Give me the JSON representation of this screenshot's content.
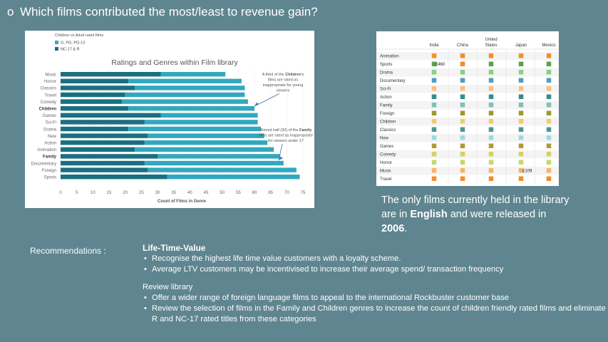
{
  "slide": {
    "bullet": "o",
    "title": "Which films contributed the most/least to revenue gain?"
  },
  "colors": {
    "background": "#5f8590",
    "teal_dark": "#1a6f80",
    "teal_light": "#32a8be"
  },
  "chart_data": [
    {
      "type": "bar",
      "orientation": "horizontal",
      "stacked": true,
      "title": "Ratings and Genres within Film library",
      "legend_title": "Children vs Adult rated films",
      "legend_position": "top-left",
      "xlabel": "Count of Films in Genre",
      "xlim": [
        0,
        75
      ],
      "xticks": [
        "0",
        "5",
        "10",
        "15",
        "20",
        "25",
        "30",
        "35",
        "40",
        "45",
        "50",
        "55",
        "60",
        "65",
        "70",
        "75"
      ],
      "categories": [
        "Music",
        "Horror",
        "Classics",
        "Travel",
        "Comedy",
        "Children",
        "Games",
        "Sci-Fi",
        "Drama",
        "New",
        "Action",
        "Animation",
        "Family",
        "Documentary",
        "Foreign",
        "Sports"
      ],
      "bold_categories": [
        "Children",
        "Family"
      ],
      "series": [
        {
          "name": "NC-17 & R",
          "color": "#1a6f80",
          "values": [
            31,
            21,
            23,
            20,
            19,
            21,
            31,
            26,
            21,
            27,
            26,
            23,
            30,
            26,
            27,
            33
          ]
        },
        {
          "name": "G, PG, PG-13",
          "color": "#32a8be",
          "values": [
            20,
            35,
            34,
            37,
            39,
            39,
            30,
            35,
            41,
            36,
            38,
            43,
            38,
            43,
            46,
            41
          ]
        }
      ],
      "annotations": [
        {
          "prefix": "A third of the ",
          "bold": "Children",
          "suffix": "'s",
          "lines": [
            "films are rated as",
            "inappropriate for young",
            "viewers"
          ]
        },
        {
          "prefix": "Almost half (30) of the ",
          "bold": "Family",
          "suffix": "",
          "lines": [
            "films are rated as inappropriate",
            "for viewers under 17"
          ]
        }
      ]
    },
    {
      "type": "heatmap",
      "columns": [
        "India",
        "China",
        "United States",
        "Japan",
        "Mexico"
      ],
      "rows": [
        "Animation",
        "Sports",
        "Drama",
        "Documentary",
        "Sci-Fi",
        "Action",
        "Family",
        "Foreign",
        "Children",
        "Classics",
        "New",
        "Games",
        "Comedy",
        "Horror",
        "Music",
        "Travel"
      ],
      "cell_colors": [
        [
          "#f28e2b",
          "#f28e2b",
          "#f28e2b",
          "#f28e2b",
          "#f28e2b"
        ],
        [
          "#59a14f",
          "#f28e2b",
          "#59a14f",
          "#59a14f",
          "#59a14f"
        ],
        [
          "#8cd17d",
          "#8cd17d",
          "#8cd17d",
          "#8cd17d",
          "#8cd17d"
        ],
        [
          "#4e9ebd",
          "#4e9ebd",
          "#4e9ebd",
          "#4e9ebd",
          "#4e9ebd"
        ],
        [
          "#ffbe7d",
          "#ffbe7d",
          "#ffbe7d",
          "#ffbe7d",
          "#ffbe7d"
        ],
        [
          "#2f8f8f",
          "#2f8f8f",
          "#2f8f8f",
          "#2f8f8f",
          "#2f8f8f"
        ],
        [
          "#86bcb6",
          "#86bcb6",
          "#86bcb6",
          "#86bcb6",
          "#86bcb6"
        ],
        [
          "#9c9a2c",
          "#9c9a2c",
          "#9c9a2c",
          "#9c9a2c",
          "#9c9a2c"
        ],
        [
          "#f1ce63",
          "#f1ce63",
          "#f1ce63",
          "#f1ce63",
          "#f1ce63"
        ],
        [
          "#499894",
          "#499894",
          "#499894",
          "#499894",
          "#499894"
        ],
        [
          "#a0d8e8",
          "#a0d8e8",
          "#a0d8e8",
          "#a0d8e8",
          "#a0d8e8"
        ],
        [
          "#b6992d",
          "#b6992d",
          "#b6992d",
          "#b6992d",
          "#b6992d"
        ],
        [
          "#d4d45a",
          "#d4d45a",
          "#d4d45a",
          "#d4d45a",
          "#d4d45a"
        ],
        [
          "#c6d86a",
          "#c6d86a",
          "#c6d86a",
          "#c6d86a",
          "#c6d86a"
        ],
        [
          "#f7b36b",
          "#f7b36b",
          "#f7b36b",
          "#f7b36b",
          "#f7b36b"
        ],
        [
          "#f28e2b",
          "#f28e2b",
          "#f28e2b",
          "#f28e2b",
          "#f28e2b"
        ]
      ],
      "labels": [
        {
          "row": "Sports",
          "column": "India",
          "text": "£460"
        },
        {
          "row": "Music",
          "column": "Japan",
          "text": "£109"
        }
      ]
    }
  ],
  "note": {
    "line1": "The only films currently held in the library",
    "line2_prefix": "are in ",
    "language": "English",
    "line2_suffix": " and were released in",
    "year": "2006",
    "end": "."
  },
  "recommendations": {
    "label": "Recommendations :",
    "ltv": {
      "heading": "Life-Time-Value",
      "items": [
        "Recognise the highest life time value customers with a loyalty scheme.",
        "Average LTV customers may be incentivised to increase their average spend/ transaction frequency"
      ]
    },
    "library": {
      "heading": "Review library",
      "items": [
        "Offer a wider range of foreign language films to appeal to the international Rockbuster customer base",
        "Review the selection of films in the Family and Children genres to increase the count of children friendly rated films and eliminate R and NC-17 rated titles from these categories"
      ]
    }
  }
}
